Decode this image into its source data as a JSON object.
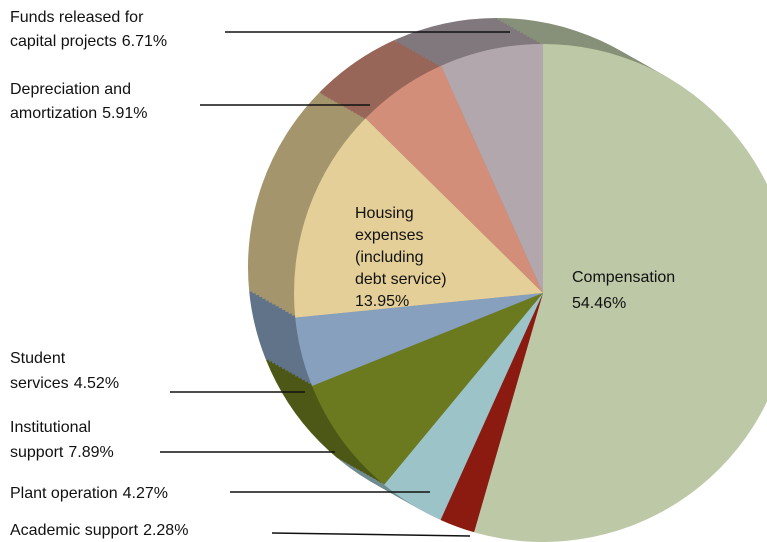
{
  "chart_data": {
    "type": "pie",
    "categories": [
      [
        "Compensation"
      ],
      [
        "Academic support"
      ],
      [
        "Plant operation"
      ],
      [
        "Institutional",
        "support"
      ],
      [
        "Student",
        "services"
      ],
      [
        "Housing",
        "expenses",
        "(including",
        "debt service)"
      ],
      [
        "Depreciation and",
        "amortization"
      ],
      [
        "Funds released for",
        "capital projects"
      ]
    ],
    "values": [
      54.46,
      2.28,
      4.27,
      7.89,
      4.52,
      13.95,
      5.91,
      6.71
    ],
    "value_labels": [
      "54.46%",
      "2.28%",
      "4.27%",
      "7.89%",
      "4.52%",
      "13.95%",
      "5.91%",
      "6.71%"
    ],
    "colors": [
      "#bcc8a6",
      "#8b1a10",
      "#9cc3c8",
      "#6b7a1e",
      "#87a0be",
      "#e4cf98",
      "#d38e7a",
      "#b3a7ae"
    ]
  }
}
